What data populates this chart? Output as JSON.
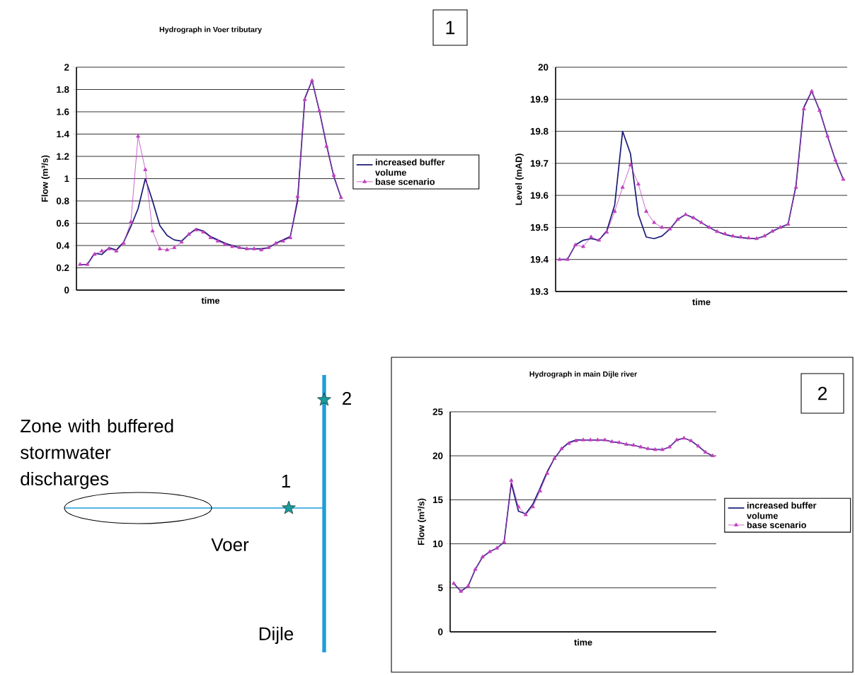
{
  "chart_data": [
    {
      "type": "line",
      "title": "Hydrograph in Voer tributary",
      "xlabel": "time",
      "ylabel": "Flow (m³/s)",
      "annotations": [
        "1"
      ],
      "categories": [
        null,
        null,
        null,
        null,
        null,
        null,
        null,
        null,
        null,
        null,
        null,
        null,
        null,
        null,
        null,
        null,
        null,
        null,
        null,
        null,
        null,
        null,
        null,
        null,
        null,
        null,
        null,
        null,
        null,
        null,
        null,
        null,
        null,
        null,
        null,
        null,
        null
      ],
      "ylim": [
        0,
        2
      ],
      "yticks": [
        0,
        0.2,
        0.4,
        0.6,
        0.8,
        1,
        1.2,
        1.4,
        1.6,
        1.8,
        2
      ],
      "grid": "y",
      "legend": "right",
      "series": [
        {
          "name": "increased buffer volume",
          "color": "#1c1c78",
          "marker": "none",
          "values": [
            0.23,
            0.23,
            0.33,
            0.32,
            0.38,
            0.36,
            0.43,
            0.57,
            0.73,
            1.0,
            0.8,
            0.58,
            0.49,
            0.45,
            0.44,
            0.5,
            0.55,
            0.53,
            0.48,
            0.45,
            0.42,
            0.4,
            0.38,
            0.37,
            0.37,
            0.37,
            0.38,
            0.42,
            0.45,
            0.48,
            0.8,
            1.72,
            1.88,
            1.61,
            1.3,
            1.02,
            0.83
          ]
        },
        {
          "name": "base scenario",
          "color": "#c040c0",
          "marker": "triangle",
          "values": [
            0.23,
            0.23,
            0.32,
            0.35,
            0.37,
            0.35,
            0.42,
            0.61,
            1.38,
            1.08,
            0.53,
            0.37,
            0.36,
            0.38,
            0.43,
            0.5,
            0.54,
            0.52,
            0.47,
            0.44,
            0.41,
            0.39,
            0.38,
            0.37,
            0.37,
            0.36,
            0.38,
            0.42,
            0.44,
            0.47,
            0.84,
            1.71,
            1.88,
            1.61,
            1.29,
            1.03,
            0.83
          ]
        }
      ]
    },
    {
      "type": "line",
      "xlabel": "time",
      "ylabel": "Level (mAD)",
      "categories": [
        null,
        null,
        null,
        null,
        null,
        null,
        null,
        null,
        null,
        null,
        null,
        null,
        null,
        null,
        null,
        null,
        null,
        null,
        null,
        null,
        null,
        null,
        null,
        null,
        null,
        null,
        null,
        null,
        null,
        null,
        null,
        null,
        null,
        null,
        null,
        null,
        null
      ],
      "ylim": [
        19.3,
        20
      ],
      "yticks": [
        19.3,
        19.4,
        19.5,
        19.6,
        19.7,
        19.8,
        19.9,
        20
      ],
      "grid": "y",
      "series": [
        {
          "color": "#1c1c78",
          "marker": "none",
          "values": [
            19.4,
            19.4,
            19.445,
            19.46,
            19.465,
            19.46,
            19.49,
            19.57,
            19.8,
            19.73,
            19.54,
            19.47,
            19.465,
            19.473,
            19.495,
            19.525,
            19.54,
            19.53,
            19.515,
            19.5,
            19.487,
            19.478,
            19.472,
            19.468,
            19.466,
            19.465,
            19.473,
            19.488,
            19.5,
            19.51,
            19.63,
            19.875,
            19.925,
            19.865,
            19.785,
            19.71,
            19.65
          ]
        },
        {
          "color": "#c040c0",
          "marker": "triangle",
          "values": [
            19.4,
            19.4,
            19.445,
            19.44,
            19.47,
            19.46,
            19.485,
            19.55,
            19.625,
            19.695,
            19.635,
            19.55,
            19.515,
            19.5,
            19.495,
            19.525,
            19.54,
            19.53,
            19.515,
            19.5,
            19.487,
            19.48,
            19.473,
            19.47,
            19.467,
            19.465,
            19.473,
            19.488,
            19.5,
            19.51,
            19.625,
            19.87,
            19.925,
            19.865,
            19.785,
            19.71,
            19.65
          ]
        }
      ]
    },
    {
      "type": "line",
      "title": "Hydrograph in main Dijle river",
      "xlabel": "time",
      "ylabel": "Flow (m³/s)",
      "annotations": [
        "2"
      ],
      "categories": [
        null,
        null,
        null,
        null,
        null,
        null,
        null,
        null,
        null,
        null,
        null,
        null,
        null,
        null,
        null,
        null,
        null,
        null,
        null,
        null,
        null,
        null,
        null,
        null,
        null,
        null,
        null,
        null,
        null,
        null,
        null,
        null,
        null,
        null,
        null,
        null,
        null
      ],
      "ylim": [
        0,
        25
      ],
      "yticks": [
        0,
        5,
        10,
        15,
        20,
        25
      ],
      "grid": "y",
      "legend": "right",
      "series": [
        {
          "name": "increased buffer volume",
          "color": "#1c1c78",
          "marker": "none",
          "values": [
            5.5,
            4.6,
            5.2,
            7.1,
            8.5,
            9.1,
            9.5,
            10.2,
            16.9,
            13.7,
            13.4,
            14.5,
            16.3,
            18.2,
            19.7,
            20.8,
            21.5,
            21.8,
            21.8,
            21.8,
            21.8,
            21.8,
            21.6,
            21.5,
            21.3,
            21.2,
            21.0,
            20.8,
            20.7,
            20.7,
            21.0,
            21.8,
            22.0,
            21.7,
            21.1,
            20.4,
            20.0
          ]
        },
        {
          "name": "base scenario",
          "color": "#c040c0",
          "marker": "triangle",
          "values": [
            5.5,
            4.6,
            5.2,
            7.1,
            8.5,
            9.1,
            9.5,
            10.2,
            17.2,
            14.2,
            13.3,
            14.2,
            16.0,
            18.0,
            19.7,
            20.8,
            21.4,
            21.7,
            21.8,
            21.8,
            21.8,
            21.8,
            21.6,
            21.5,
            21.3,
            21.2,
            21.0,
            20.8,
            20.7,
            20.7,
            21.0,
            21.8,
            22.0,
            21.7,
            21.1,
            20.4,
            20.0
          ]
        }
      ]
    },
    {
      "type": "other",
      "annotations": [
        "Zone with buffered stormwater discharges",
        "Voer",
        "Dijle",
        "1",
        "2"
      ]
    }
  ]
}
